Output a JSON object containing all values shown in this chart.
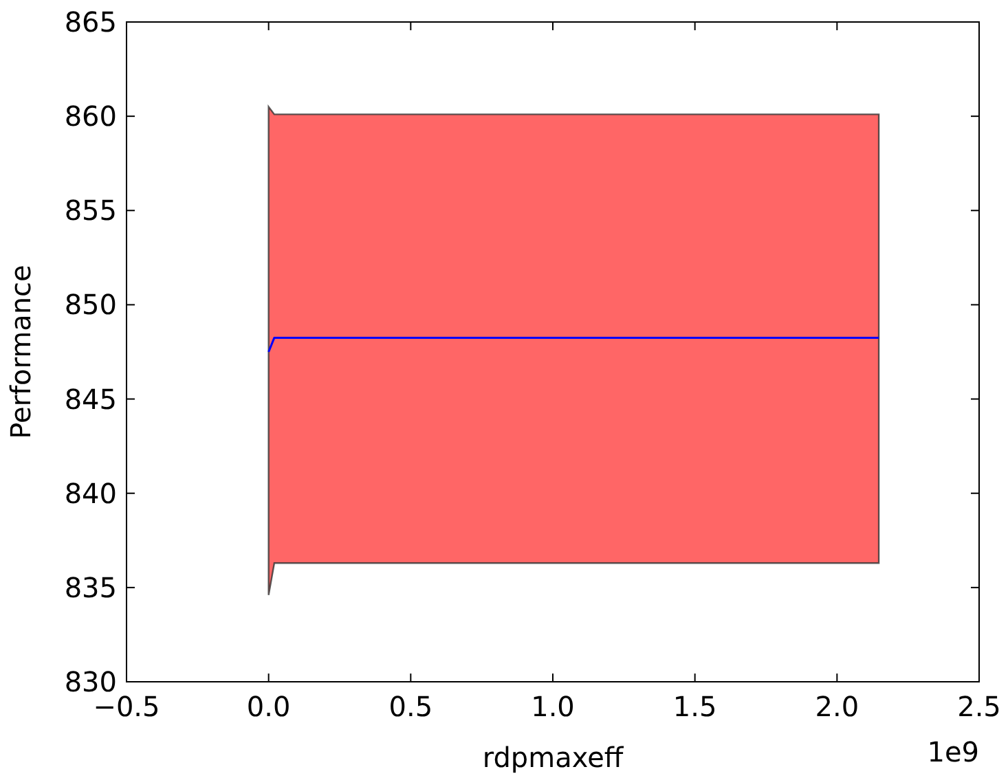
{
  "chart_data": {
    "type": "line",
    "xlabel": "rdpmaxeff",
    "ylabel": "Performance",
    "series": [
      {
        "x": [
          0,
          0.02,
          2.147
        ],
        "values": [
          847.5,
          848.25,
          848.25
        ],
        "lower": [
          834.6,
          836.3,
          836.3
        ],
        "upper": [
          860.5,
          860.1,
          860.1
        ],
        "color": "#0000ff"
      }
    ],
    "xlim": [
      -0.5,
      2.5
    ],
    "xticks": [
      {
        "value": -0.5,
        "label": "−0.5"
      },
      {
        "value": 0,
        "label": "0.0"
      },
      0.5,
      {
        "value": 1,
        "label": "1.0"
      },
      1.5,
      {
        "value": 2,
        "label": "2.0"
      },
      2.5
    ],
    "ylim": [
      830,
      865
    ],
    "yticks": [
      830,
      835,
      840,
      845,
      850,
      855,
      860,
      865
    ],
    "annotations": [
      "1e9"
    ],
    "grid": false,
    "marker": "none",
    "line_style": "solid"
  }
}
